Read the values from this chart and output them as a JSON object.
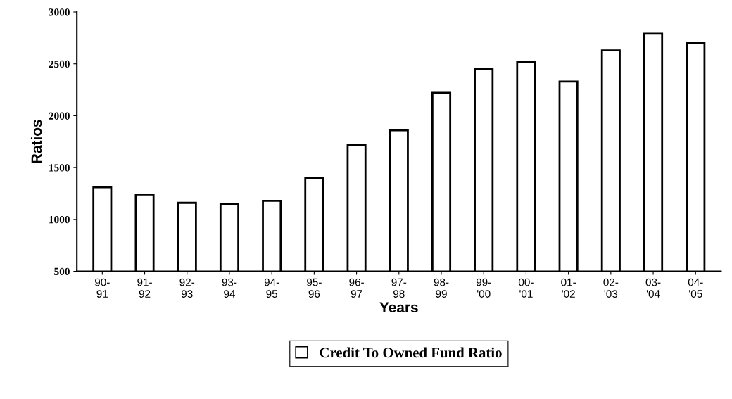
{
  "chart_data": {
    "type": "bar",
    "xlabel": "Years",
    "ylabel": "Ratios",
    "categories": [
      "90-\n91",
      "91-\n92",
      "92-\n93",
      "93-\n94",
      "94-\n95",
      "95-\n96",
      "96-\n97",
      "97-\n98",
      "98-\n99",
      "99-\n'00",
      "00-\n'01",
      "01-\n'02",
      "02-\n'03",
      "03-\n'04",
      "04-\n'05"
    ],
    "series": [
      {
        "name": "Credit To Owned Fund Ratio",
        "color": "#ffffff",
        "values": [
          1310,
          1240,
          1160,
          1150,
          1180,
          1400,
          1720,
          1860,
          2220,
          2450,
          2520,
          2330,
          2630,
          2790,
          2700
        ]
      }
    ],
    "ylim": [
      500,
      3000
    ],
    "yticks": [
      500,
      1000,
      1500,
      2000,
      2500,
      3000
    ],
    "grid": false,
    "legend": "bottom"
  }
}
